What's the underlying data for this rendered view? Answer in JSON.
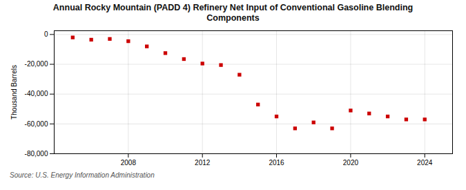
{
  "chart_data": {
    "type": "scatter",
    "title": "Annual Rocky Mountain (PADD 4) Refinery Net Input of Conventional Gasoline Blending\nComponents",
    "y_label": "Thousand Barrels",
    "annotations": [
      "Source: U.S. Energy Information Administration"
    ],
    "x": [
      2005,
      2006,
      2007,
      2008,
      2009,
      2010,
      2011,
      2012,
      2013,
      2014,
      2015,
      2016,
      2017,
      2018,
      2019,
      2020,
      2021,
      2022,
      2023,
      2024
    ],
    "values": [
      -2000,
      -3500,
      -3000,
      -4500,
      -8000,
      -12500,
      -16500,
      -19500,
      -20500,
      -27000,
      -47000,
      -55000,
      -63000,
      -59000,
      -63000,
      -51000,
      -53000,
      -55000,
      -57000,
      -57000
    ],
    "color": "#cc0000",
    "marker": "square",
    "xlim": [
      2004.0,
      2025.5
    ],
    "xticks": [
      2008,
      2012,
      2016,
      2020,
      2024
    ],
    "ylim": [
      -80000,
      2500
    ],
    "yticks": [
      0,
      {
        "value": -20000,
        "label": "-20,000"
      },
      {
        "value": -40000,
        "label": "-40,000"
      },
      {
        "value": -60000,
        "label": "-60,000"
      },
      {
        "value": -80000,
        "label": "-80,000"
      }
    ],
    "grid": true
  }
}
